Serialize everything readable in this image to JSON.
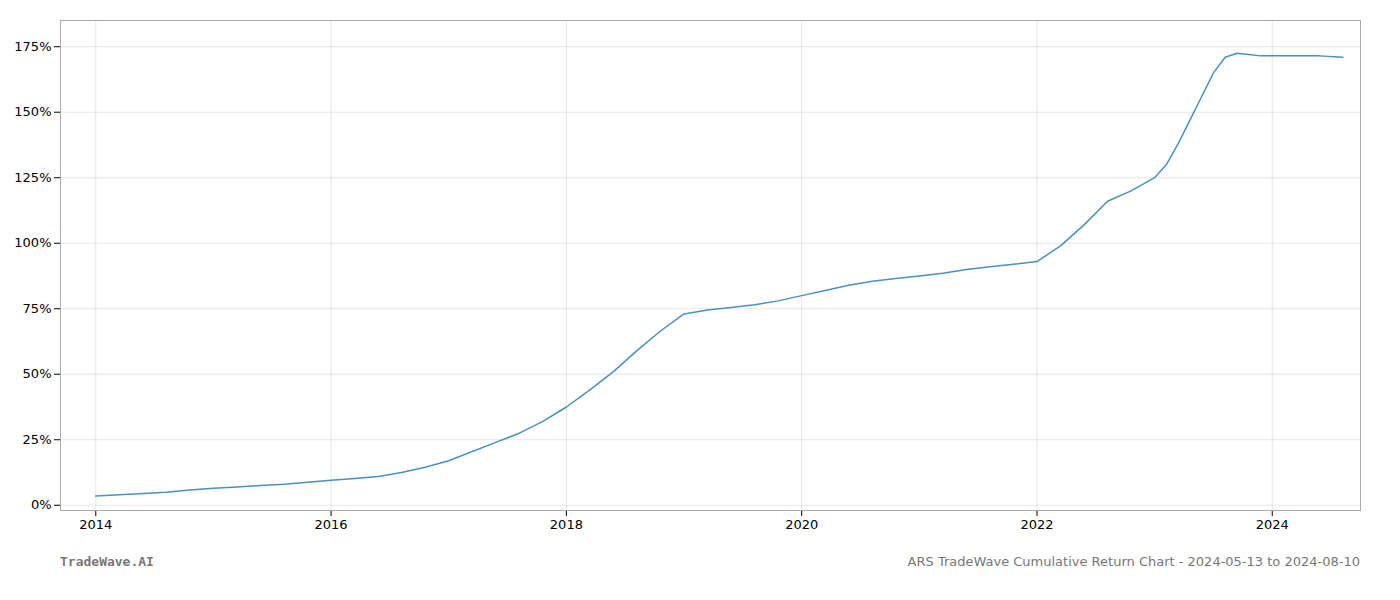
{
  "chart_data": {
    "type": "line",
    "color": "#4a90c4",
    "grid": true,
    "annotations": [
      "TradeWave.AI",
      "ARS TradeWave Cumulative Return Chart - 2024-05-13 to 2024-08-10"
    ],
    "x": [
      2014.0,
      2014.2,
      2014.4,
      2014.6,
      2014.8,
      2015.0,
      2015.2,
      2015.4,
      2015.6,
      2015.8,
      2016.0,
      2016.2,
      2016.4,
      2016.6,
      2016.8,
      2017.0,
      2017.2,
      2017.4,
      2017.6,
      2017.8,
      2018.0,
      2018.2,
      2018.4,
      2018.6,
      2018.8,
      2019.0,
      2019.2,
      2019.4,
      2019.6,
      2019.8,
      2020.0,
      2020.2,
      2020.4,
      2020.6,
      2020.8,
      2021.0,
      2021.2,
      2021.4,
      2021.6,
      2021.8,
      2022.0,
      2022.2,
      2022.4,
      2022.6,
      2022.8,
      2023.0,
      2023.1,
      2023.2,
      2023.3,
      2023.4,
      2023.5,
      2023.6,
      2023.7,
      2023.8,
      2023.9,
      2024.0,
      2024.2,
      2024.4,
      2024.6
    ],
    "values": [
      3.5,
      4.0,
      4.5,
      5.0,
      5.8,
      6.5,
      7.0,
      7.5,
      8.0,
      8.8,
      9.5,
      10.2,
      11.0,
      12.5,
      14.5,
      17.0,
      20.5,
      24.0,
      27.5,
      32.0,
      37.5,
      44.0,
      51.0,
      59.0,
      66.5,
      73.0,
      74.5,
      75.5,
      76.5,
      78.0,
      80.0,
      82.0,
      84.0,
      85.5,
      86.5,
      87.5,
      88.5,
      90.0,
      91.0,
      92.0,
      93.0,
      99.0,
      107.0,
      116.0,
      120.0,
      125.0,
      130.0,
      138.0,
      147.0,
      156.0,
      165.0,
      171.0,
      172.5,
      172.0,
      171.5,
      171.5,
      171.5,
      171.5,
      171.0
    ],
    "xlim": [
      2013.7,
      2024.75
    ],
    "ylim": [
      -2,
      185
    ],
    "xticks": [
      2014,
      2016,
      2018,
      2020,
      2022,
      2024
    ],
    "yticks": [
      {
        "value": 0,
        "label": "0%"
      },
      {
        "value": 25,
        "label": "25%"
      },
      {
        "value": 50,
        "label": "50%"
      },
      {
        "value": 75,
        "label": "75%"
      },
      {
        "value": 100,
        "label": "100%"
      },
      {
        "value": 125,
        "label": "125%"
      },
      {
        "value": 150,
        "label": "150%"
      },
      {
        "value": 175,
        "label": "175%"
      }
    ]
  }
}
